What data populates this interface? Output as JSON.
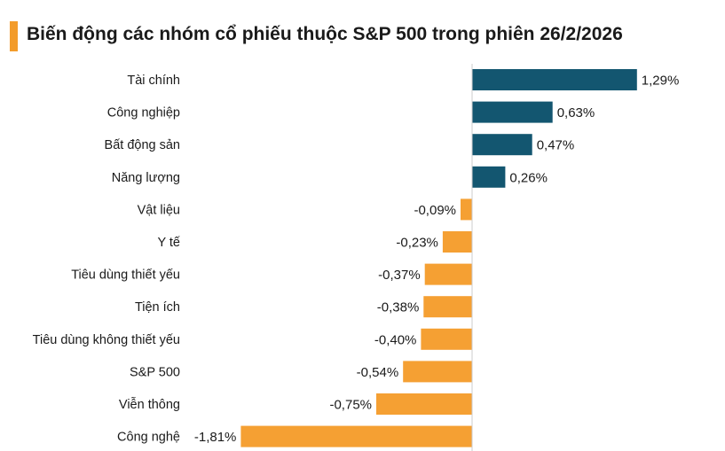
{
  "chart_data": {
    "type": "bar",
    "orientation": "horizontal",
    "title": "Biến động các nhóm cổ phiếu thuộc S&P 500 trong phiên 26/2/2026",
    "categories": [
      "Tài chính",
      "Công nghiệp",
      "Bất động sản",
      "Năng lượng",
      "Vật liệu",
      "Y tế",
      "Tiêu dùng thiết yếu",
      "Tiện ích",
      "Tiêu dùng không thiết yếu",
      "S&P 500",
      "Viễn thông",
      "Công nghệ"
    ],
    "values": [
      1.29,
      0.63,
      0.47,
      0.26,
      -0.09,
      -0.23,
      -0.37,
      -0.38,
      -0.4,
      -0.54,
      -0.75,
      -1.81
    ],
    "value_labels": [
      "1,29%",
      "0,63%",
      "0,47%",
      "0,26%",
      "-0,09%",
      "-0,23%",
      "-0,37%",
      "-0,38%",
      "-0,40%",
      "-0,54%",
      "-0,75%",
      "-1,81%"
    ],
    "unit": "%",
    "grid": false,
    "colors": {
      "positive": "#135670",
      "negative": "#f5a033",
      "accent": "#f39c2b",
      "axis": "#cccccc"
    }
  }
}
